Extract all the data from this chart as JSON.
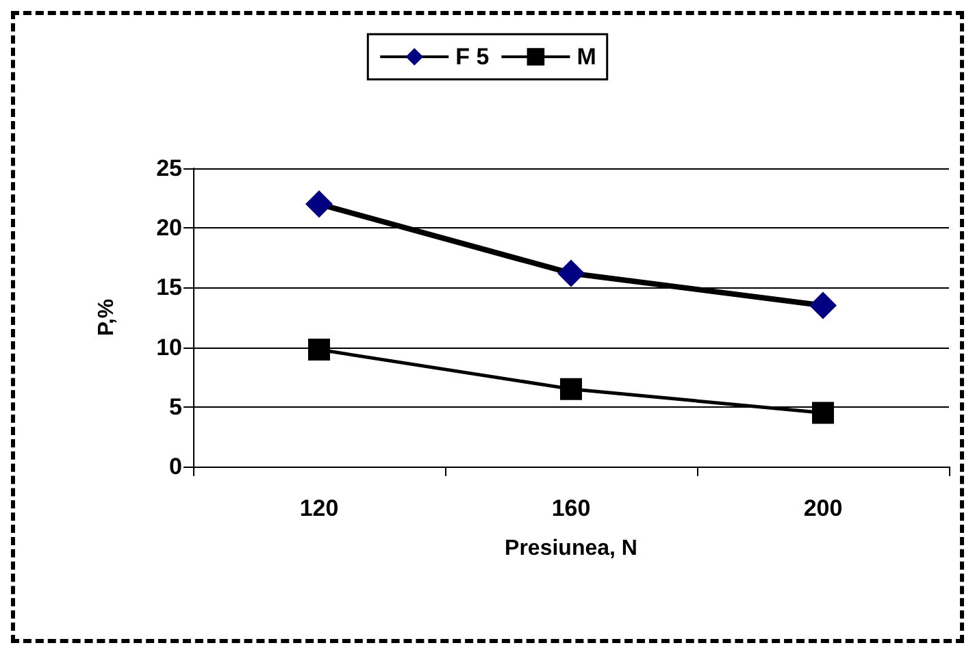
{
  "chart_data": {
    "type": "line",
    "xlabel": "Presiunea, N",
    "ylabel": "P,%",
    "categories": [
      "120",
      "160",
      "200"
    ],
    "series": [
      {
        "name": "F 5",
        "color": "#000080",
        "values": [
          22,
          16.2,
          13.5
        ],
        "marker": "diamond"
      },
      {
        "name": "M",
        "color": "#000000",
        "values": [
          9.8,
          6.5,
          4.5
        ],
        "marker": "square"
      }
    ],
    "ylim": [
      0,
      25
    ],
    "yticks": [
      0,
      5,
      10,
      15,
      20,
      25
    ],
    "grid": "y",
    "legend": "top",
    "line_style": "solid"
  }
}
